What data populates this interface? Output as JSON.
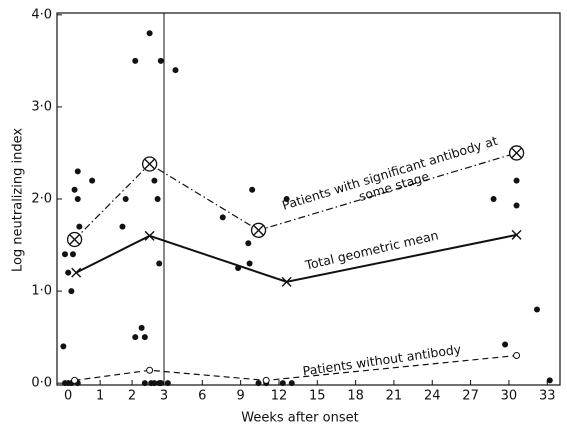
{
  "chart_data": {
    "type": "scatter",
    "xlabel": "Weeks after onset",
    "ylabel": "Log neutralizing index",
    "x_segments": [
      {
        "xlim": [
          -0.35,
          3
        ]
      },
      {
        "xlim": [
          3,
          34
        ]
      }
    ],
    "xticks": [
      0,
      1,
      2,
      3,
      6,
      9,
      12,
      15,
      18,
      21,
      24,
      27,
      30,
      33
    ],
    "ylim": [
      -0.02,
      4.02
    ],
    "yticks": [
      {
        "value": 0,
        "label": "0·0"
      },
      {
        "value": 1,
        "label": "1·0"
      },
      {
        "value": 2,
        "label": "2·0"
      },
      {
        "value": 3,
        "label": "3·0"
      },
      {
        "value": 4,
        "label": "4·0"
      }
    ],
    "color": "#111111",
    "points": {
      "x": [
        -0.15,
        -0.1,
        0.0,
        0.1,
        0.15,
        0.2,
        0.3,
        0.3,
        0.35,
        0.75,
        -0.1,
        0.0,
        0.1,
        0.3,
        1.8,
        1.7,
        2.1,
        2.1,
        2.3,
        2.4,
        2.55,
        2.7,
        2.8,
        2.9,
        2.85,
        2.9,
        2.4,
        2.6,
        2.7,
        2.85,
        2.9,
        3.9,
        3.3,
        7.6,
        8.8,
        9.6,
        9.9,
        9.7,
        10.4,
        11.0,
        12.3,
        12.6,
        13.0,
        28.8,
        29.7,
        30.6,
        30.6,
        32.2,
        33.2
      ],
      "y": [
        0.4,
        1.4,
        1.2,
        1.0,
        1.4,
        2.1,
        2.3,
        2.0,
        1.7,
        2.2,
        0.0,
        0.0,
        0.0,
        0.0,
        2.0,
        1.7,
        3.5,
        0.5,
        0.6,
        0.5,
        3.8,
        2.2,
        2.0,
        3.5,
        1.3,
        0.0,
        0.0,
        0.0,
        0.0,
        0.0,
        0.0,
        3.4,
        0.0,
        1.8,
        1.25,
        1.52,
        2.1,
        1.3,
        0.0,
        0.0,
        0.0,
        2.0,
        0.0,
        2.0,
        0.42,
        2.2,
        1.93,
        0.8,
        0.03
      ]
    },
    "series": [
      {
        "name": "Patients with significant antibody at some stage",
        "dash": "dashdot",
        "marker": "circled-x",
        "color": "#111111",
        "x": [
          0.2,
          2.55,
          10.4,
          30.6
        ],
        "values": [
          1.56,
          2.38,
          1.66,
          2.5
        ]
      },
      {
        "name": "Total geometric mean",
        "dash": "solid",
        "marker": "x",
        "color": "#111111",
        "x": [
          0.25,
          2.55,
          12.6,
          30.6
        ],
        "values": [
          1.2,
          1.6,
          1.1,
          1.61
        ]
      },
      {
        "name": "Patients without antibody",
        "dash": "dashed",
        "marker": "circle",
        "color": "#111111",
        "x": [
          0.2,
          2.55,
          11.0,
          30.6
        ],
        "values": [
          0.03,
          0.14,
          0.03,
          0.3
        ]
      }
    ]
  }
}
